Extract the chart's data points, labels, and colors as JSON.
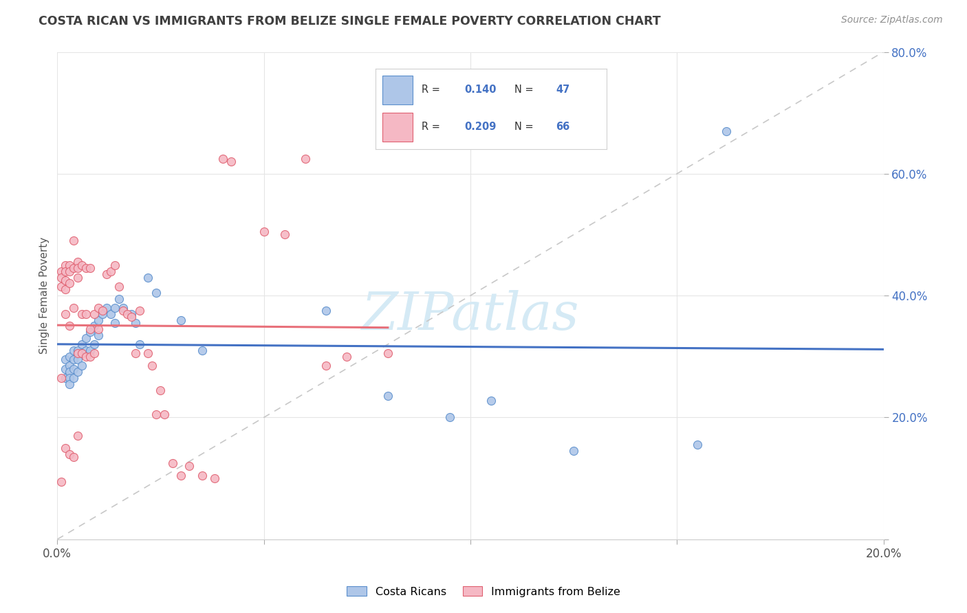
{
  "title": "COSTA RICAN VS IMMIGRANTS FROM BELIZE SINGLE FEMALE POVERTY CORRELATION CHART",
  "source": "Source: ZipAtlas.com",
  "ylabel": "Single Female Poverty",
  "xlim": [
    0.0,
    0.2
  ],
  "ylim": [
    0.0,
    0.8
  ],
  "xticks": [
    0.0,
    0.05,
    0.1,
    0.15,
    0.2
  ],
  "yticks": [
    0.0,
    0.2,
    0.4,
    0.6,
    0.8
  ],
  "blue_R": "0.140",
  "blue_N": "47",
  "pink_R": "0.209",
  "pink_N": "66",
  "blue_scatter_x": [
    0.002,
    0.002,
    0.002,
    0.003,
    0.003,
    0.003,
    0.003,
    0.003,
    0.004,
    0.004,
    0.004,
    0.004,
    0.005,
    0.005,
    0.005,
    0.006,
    0.006,
    0.006,
    0.007,
    0.007,
    0.008,
    0.008,
    0.009,
    0.009,
    0.01,
    0.01,
    0.011,
    0.012,
    0.013,
    0.014,
    0.014,
    0.015,
    0.016,
    0.018,
    0.019,
    0.02,
    0.022,
    0.024,
    0.03,
    0.035,
    0.065,
    0.08,
    0.095,
    0.105,
    0.125,
    0.155,
    0.162
  ],
  "blue_scatter_y": [
    0.295,
    0.28,
    0.265,
    0.3,
    0.285,
    0.275,
    0.265,
    0.255,
    0.31,
    0.295,
    0.28,
    0.265,
    0.31,
    0.295,
    0.275,
    0.32,
    0.305,
    0.285,
    0.33,
    0.31,
    0.34,
    0.31,
    0.35,
    0.32,
    0.36,
    0.335,
    0.37,
    0.38,
    0.37,
    0.38,
    0.355,
    0.395,
    0.38,
    0.37,
    0.355,
    0.32,
    0.43,
    0.405,
    0.36,
    0.31,
    0.375,
    0.235,
    0.2,
    0.228,
    0.145,
    0.155,
    0.67
  ],
  "pink_scatter_x": [
    0.001,
    0.001,
    0.001,
    0.001,
    0.001,
    0.002,
    0.002,
    0.002,
    0.002,
    0.002,
    0.002,
    0.003,
    0.003,
    0.003,
    0.003,
    0.003,
    0.004,
    0.004,
    0.004,
    0.004,
    0.005,
    0.005,
    0.005,
    0.005,
    0.005,
    0.006,
    0.006,
    0.006,
    0.007,
    0.007,
    0.007,
    0.008,
    0.008,
    0.008,
    0.009,
    0.009,
    0.01,
    0.01,
    0.011,
    0.012,
    0.013,
    0.014,
    0.015,
    0.016,
    0.017,
    0.018,
    0.019,
    0.02,
    0.022,
    0.023,
    0.024,
    0.025,
    0.026,
    0.028,
    0.03,
    0.032,
    0.035,
    0.038,
    0.04,
    0.042,
    0.05,
    0.055,
    0.06,
    0.065,
    0.07,
    0.08
  ],
  "pink_scatter_y": [
    0.44,
    0.43,
    0.415,
    0.265,
    0.095,
    0.45,
    0.44,
    0.425,
    0.41,
    0.37,
    0.15,
    0.45,
    0.44,
    0.42,
    0.35,
    0.14,
    0.49,
    0.445,
    0.38,
    0.135,
    0.455,
    0.445,
    0.43,
    0.305,
    0.17,
    0.45,
    0.37,
    0.305,
    0.445,
    0.37,
    0.3,
    0.445,
    0.345,
    0.3,
    0.37,
    0.305,
    0.38,
    0.345,
    0.375,
    0.435,
    0.44,
    0.45,
    0.415,
    0.375,
    0.37,
    0.365,
    0.305,
    0.375,
    0.305,
    0.285,
    0.205,
    0.245,
    0.205,
    0.125,
    0.105,
    0.12,
    0.105,
    0.1,
    0.625,
    0.62,
    0.505,
    0.5,
    0.625,
    0.285,
    0.3,
    0.305
  ],
  "blue_color": "#aec6e8",
  "pink_color": "#f5b8c4",
  "blue_edge_color": "#5b8fcc",
  "pink_edge_color": "#e06070",
  "blue_line_color": "#4472c4",
  "pink_line_color": "#e8707a",
  "diag_line_color": "#c8c8c8",
  "watermark_color": "#d5eaf5",
  "background_color": "#ffffff",
  "grid_color": "#e5e5e5",
  "title_color": "#404040",
  "source_color": "#909090",
  "tick_color_y": "#4472c4",
  "tick_color_x": "#505050"
}
